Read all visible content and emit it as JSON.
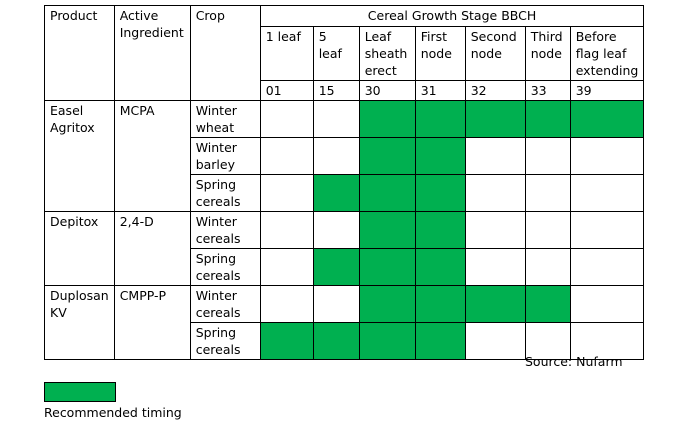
{
  "table": {
    "headers": {
      "product": "Product",
      "active_ingredient": "Active Ingredient",
      "crop": "Crop",
      "stage_group": "Cereal Growth Stage BBCH",
      "stages": [
        {
          "name": "1 leaf",
          "code": "01"
        },
        {
          "name": "5 leaf",
          "code": "15"
        },
        {
          "name": "Leaf sheath erect",
          "code": "30"
        },
        {
          "name": "First node",
          "code": "31"
        },
        {
          "name": "Second node",
          "code": "32"
        },
        {
          "name": "Third node",
          "code": "33"
        },
        {
          "name": "Before flag leaf extending",
          "code": "39"
        }
      ]
    },
    "products": [
      {
        "name": "Easel Agritox",
        "active_ingredient": "MCPA",
        "crops": [
          {
            "crop": "Winter wheat",
            "recommended": [
              false,
              false,
              true,
              true,
              true,
              true,
              true
            ]
          },
          {
            "crop": "Winter barley",
            "recommended": [
              false,
              false,
              true,
              true,
              false,
              false,
              false
            ]
          },
          {
            "crop": "Spring cereals",
            "recommended": [
              false,
              true,
              true,
              true,
              false,
              false,
              false
            ]
          }
        ]
      },
      {
        "name": "Depitox",
        "active_ingredient": "2,4-D",
        "crops": [
          {
            "crop": "Winter cereals",
            "recommended": [
              false,
              false,
              true,
              true,
              false,
              false,
              false
            ]
          },
          {
            "crop": "Spring cereals",
            "recommended": [
              false,
              true,
              true,
              true,
              false,
              false,
              false
            ]
          }
        ]
      },
      {
        "name": "Duplosan KV",
        "active_ingredient": "CMPP-P",
        "crops": [
          {
            "crop": "Winter cereals",
            "recommended": [
              false,
              false,
              true,
              true,
              true,
              true,
              false
            ]
          },
          {
            "crop": "Spring cereals",
            "recommended": [
              true,
              true,
              true,
              true,
              false,
              false,
              false
            ]
          }
        ]
      }
    ]
  },
  "colors": {
    "recommended": "#00b050"
  },
  "source": "Source: Nufarm",
  "legend": {
    "label": "Recommended timing"
  }
}
